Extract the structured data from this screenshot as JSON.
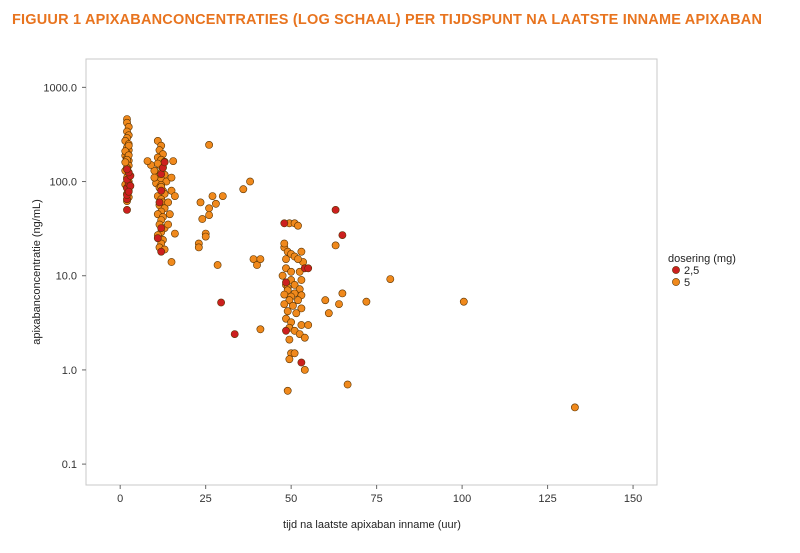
{
  "figure_title": "FIGUUR 1 APIXABANCONCENTRATIES (LOG SCHAAL) PER TIJDSPUNT NA LAATSTE INNAME APIXABAN",
  "colors": {
    "title": "#e8741f",
    "dose_2_5": "#cc1f1f",
    "dose_5": "#f0891c",
    "marker_stroke": "#5a3300",
    "frame": "#c8c8c8"
  },
  "chart_data": {
    "type": "scatter",
    "title": "FIGUUR 1 APIXABANCONCENTRATIES (LOG SCHAAL) PER TIJDSPUNT NA LAATSTE INNAME APIXABAN",
    "xlabel": "tijd na laatste apixaban inname (uur)",
    "ylabel": "apixabanconcentratie (ng/mL)",
    "xlim": [
      -10,
      157
    ],
    "ylim": [
      0.06,
      2000
    ],
    "yscale": "log",
    "grid": false,
    "legend_position": "right",
    "legend_title": "dosering (mg)",
    "x_ticks": [
      0,
      25,
      50,
      75,
      100,
      125,
      150
    ],
    "x_tick_labels": [
      "0",
      "25",
      "50",
      "75",
      "100",
      "125",
      "150"
    ],
    "y_ticks": [
      0.1,
      1,
      10,
      100,
      1000
    ],
    "y_tick_labels": [
      "0.1",
      "1.0",
      "10.0",
      "100.0",
      "1000.0"
    ],
    "series": [
      {
        "name": "2,5",
        "color": "#cc1f1f",
        "points": [
          [
            2,
            50
          ],
          [
            2,
            65
          ],
          [
            2,
            72
          ],
          [
            2,
            85
          ],
          [
            2.5,
            95
          ],
          [
            2,
            105
          ],
          [
            3,
            115
          ],
          [
            2.5,
            125
          ],
          [
            2,
            135
          ],
          [
            3,
            90
          ],
          [
            2.5,
            78
          ],
          [
            11,
            25
          ],
          [
            12,
            18
          ],
          [
            12,
            32
          ],
          [
            11.5,
            60
          ],
          [
            12,
            80
          ],
          [
            12,
            120
          ],
          [
            12.5,
            140
          ],
          [
            13,
            160
          ],
          [
            29.5,
            5.2
          ],
          [
            33.5,
            2.4
          ],
          [
            48,
            36
          ],
          [
            48.5,
            8.5
          ],
          [
            48.5,
            2.6
          ],
          [
            53,
            1.2
          ],
          [
            54,
            12
          ],
          [
            55,
            12
          ],
          [
            63,
            50
          ],
          [
            65,
            27
          ]
        ]
      },
      {
        "name": "5",
        "color": "#f0891c",
        "points": [
          [
            2,
            460
          ],
          [
            2,
            420
          ],
          [
            2.5,
            380
          ],
          [
            2,
            340
          ],
          [
            2.5,
            310
          ],
          [
            2,
            290
          ],
          [
            1.5,
            270
          ],
          [
            2.5,
            250
          ],
          [
            2,
            230
          ],
          [
            2.5,
            215
          ],
          [
            2,
            200
          ],
          [
            1.5,
            188
          ],
          [
            2,
            176
          ],
          [
            2.5,
            166
          ],
          [
            2,
            156
          ],
          [
            2.5,
            148
          ],
          [
            2,
            140
          ],
          [
            1.5,
            130
          ],
          [
            2.5,
            120
          ],
          [
            2,
            110
          ],
          [
            2.5,
            100
          ],
          [
            1.5,
            93
          ],
          [
            2,
            86
          ],
          [
            2.5,
            80
          ],
          [
            2,
            74
          ],
          [
            2.5,
            68
          ],
          [
            2,
            62
          ],
          [
            2.5,
            240
          ],
          [
            1.5,
            210
          ],
          [
            2.5,
            190
          ],
          [
            2,
            170
          ],
          [
            1.5,
            160
          ],
          [
            11,
            270
          ],
          [
            12,
            240
          ],
          [
            11.5,
            215
          ],
          [
            12.5,
            195
          ],
          [
            11,
            180
          ],
          [
            12,
            170
          ],
          [
            13,
            162
          ],
          [
            11.5,
            150
          ],
          [
            12.5,
            140
          ],
          [
            10,
            130
          ],
          [
            12,
            125
          ],
          [
            13,
            118
          ],
          [
            11,
            112
          ],
          [
            12,
            105
          ],
          [
            13.5,
            100
          ],
          [
            10.5,
            96
          ],
          [
            12,
            92
          ],
          [
            11.5,
            86
          ],
          [
            12.5,
            80
          ],
          [
            13,
            74
          ],
          [
            11,
            70
          ],
          [
            12,
            65
          ],
          [
            12.5,
            60
          ],
          [
            11.5,
            56
          ],
          [
            13,
            52
          ],
          [
            12,
            48
          ],
          [
            11,
            45
          ],
          [
            12.5,
            42
          ],
          [
            12,
            39
          ],
          [
            11.5,
            35
          ],
          [
            13,
            32
          ],
          [
            12,
            29
          ],
          [
            11,
            27
          ],
          [
            12.5,
            24
          ],
          [
            12,
            22
          ],
          [
            11.5,
            20
          ],
          [
            13,
            19
          ],
          [
            12,
            88
          ],
          [
            11,
            155
          ],
          [
            14,
            60
          ],
          [
            14.5,
            45
          ],
          [
            15,
            80
          ],
          [
            15,
            110
          ],
          [
            16,
            28
          ],
          [
            15,
            14
          ],
          [
            15.5,
            165
          ],
          [
            16,
            70
          ],
          [
            14,
            35
          ],
          [
            9,
            150
          ],
          [
            8,
            165
          ],
          [
            10,
            110
          ],
          [
            26,
            245
          ],
          [
            27,
            70
          ],
          [
            30,
            70
          ],
          [
            23.5,
            60
          ],
          [
            26,
            52
          ],
          [
            28,
            58
          ],
          [
            26,
            44
          ],
          [
            24,
            40
          ],
          [
            23,
            22
          ],
          [
            23,
            20
          ],
          [
            25,
            28
          ],
          [
            25,
            26
          ],
          [
            28.5,
            13
          ],
          [
            36,
            83
          ],
          [
            38,
            100
          ],
          [
            39,
            15
          ],
          [
            40,
            13
          ],
          [
            41,
            15
          ],
          [
            41,
            2.7
          ],
          [
            48,
            20
          ],
          [
            49.5,
            36
          ],
          [
            51,
            36
          ],
          [
            52,
            34
          ],
          [
            48,
            22
          ],
          [
            49,
            18
          ],
          [
            50,
            17
          ],
          [
            51,
            16
          ],
          [
            53,
            18
          ],
          [
            53.5,
            14
          ],
          [
            48.5,
            15
          ],
          [
            52,
            15
          ],
          [
            48.5,
            12
          ],
          [
            50,
            11
          ],
          [
            52.5,
            11
          ],
          [
            47.5,
            10
          ],
          [
            50,
            9
          ],
          [
            53,
            9
          ],
          [
            48.5,
            8
          ],
          [
            51,
            8
          ],
          [
            49,
            7.5
          ],
          [
            52.5,
            7.2
          ],
          [
            49,
            7
          ],
          [
            51,
            6.5
          ],
          [
            48,
            6.3
          ],
          [
            50,
            6
          ],
          [
            53,
            6.2
          ],
          [
            49.5,
            5.5
          ],
          [
            52,
            5.5
          ],
          [
            48,
            5
          ],
          [
            50.5,
            4.8
          ],
          [
            53,
            4.5
          ],
          [
            49,
            4.2
          ],
          [
            51.5,
            4
          ],
          [
            48.5,
            3.5
          ],
          [
            50,
            3.2
          ],
          [
            53,
            3.0
          ],
          [
            49.5,
            2.8
          ],
          [
            51,
            2.6
          ],
          [
            52.5,
            2.4
          ],
          [
            49.5,
            2.1
          ],
          [
            54,
            2.2
          ],
          [
            50,
            1.5
          ],
          [
            51,
            1.5
          ],
          [
            49.5,
            1.3
          ],
          [
            54,
            1.0
          ],
          [
            49,
            0.6
          ],
          [
            55,
            3.0
          ],
          [
            60,
            5.5
          ],
          [
            61,
            4
          ],
          [
            63,
            21
          ],
          [
            64,
            5
          ],
          [
            65,
            6.5
          ],
          [
            66.5,
            0.7
          ],
          [
            72,
            5.3
          ],
          [
            79,
            9.2
          ],
          [
            100.5,
            5.3
          ],
          [
            133,
            0.4
          ]
        ]
      }
    ]
  }
}
